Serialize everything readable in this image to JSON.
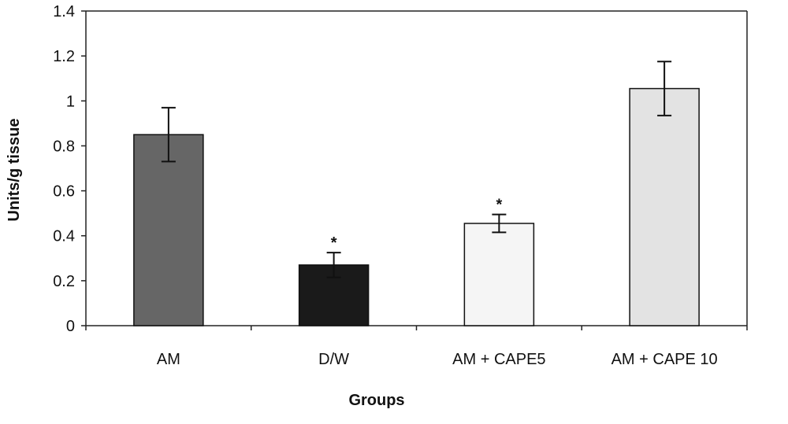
{
  "chart_data": {
    "type": "bar",
    "title": "",
    "xlabel": "Groups",
    "ylabel": "Units/g tissue",
    "categories": [
      "AM",
      "D/W",
      "AM + CAPE5",
      "AM + CAPE 10"
    ],
    "values": [
      0.85,
      0.27,
      0.455,
      1.055
    ],
    "errors": [
      0.12,
      0.055,
      0.04,
      0.12
    ],
    "significance": [
      "",
      "*",
      "*",
      ""
    ],
    "bar_colors": [
      "#666666",
      "#1a1a1a",
      "#f5f5f5",
      "#e3e3e3"
    ],
    "ylim": [
      0,
      1.4
    ],
    "yticks": [
      0,
      0.2,
      0.4,
      0.6,
      0.8,
      1,
      1.2,
      1.4
    ],
    "ytick_labels": [
      "0",
      "0.2",
      "0.4",
      "0.6",
      "0.8",
      "1",
      "1.2",
      "1.4"
    ],
    "grid": false,
    "legend": "none"
  }
}
